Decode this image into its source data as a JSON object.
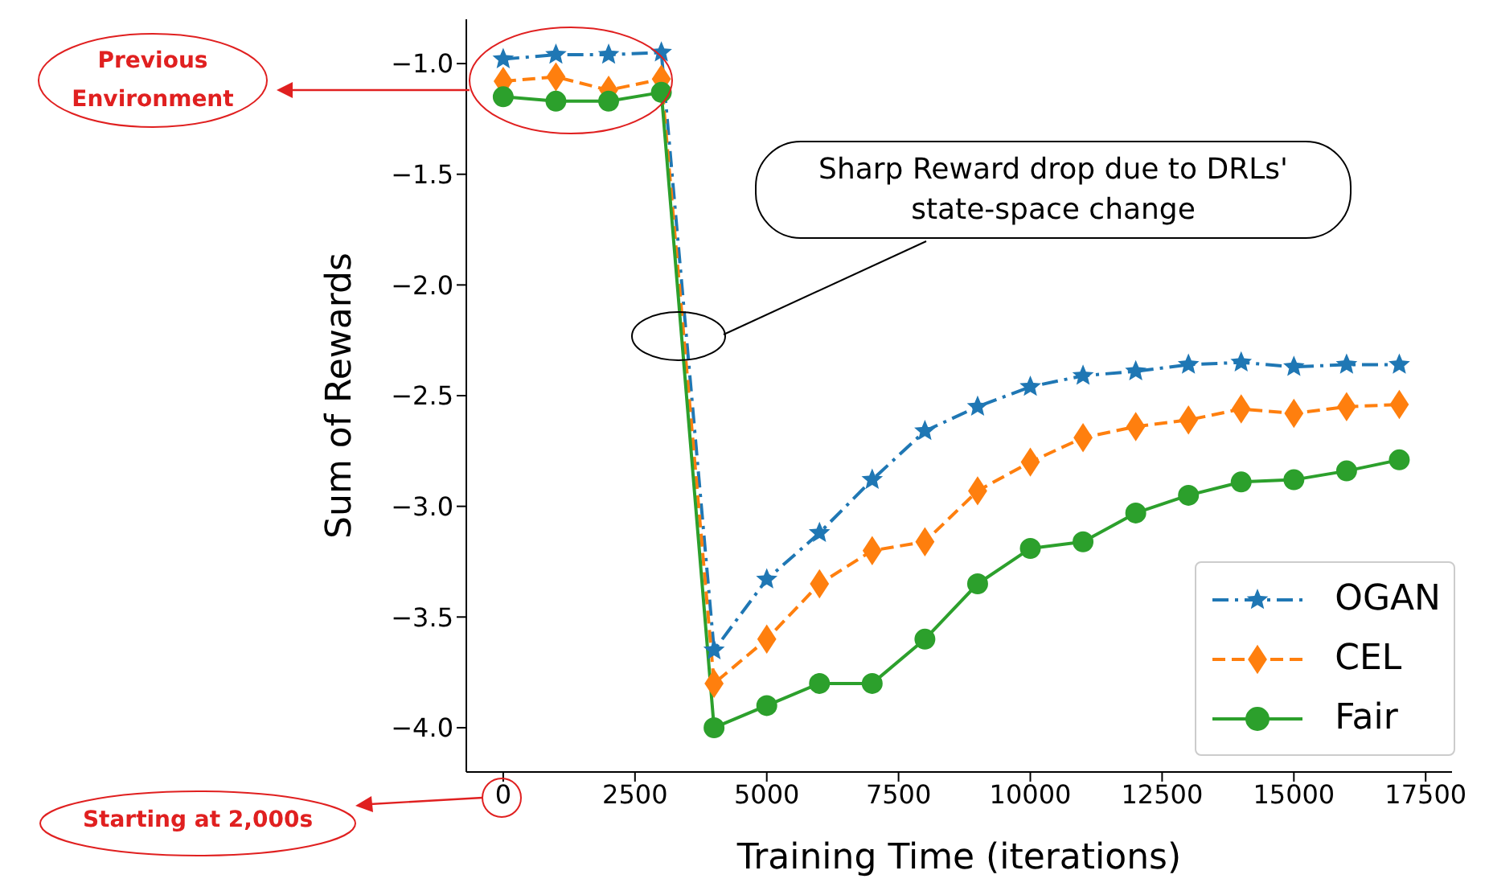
{
  "chart_data": {
    "type": "line",
    "xlabel": "Training Time (iterations)",
    "ylabel": "Sum of Rewards",
    "x": [
      0,
      1000,
      2000,
      3000,
      4000,
      5000,
      6000,
      7000,
      8000,
      9000,
      10000,
      11000,
      12000,
      13000,
      14000,
      15000,
      16000,
      17000
    ],
    "series": [
      {
        "name": "OGAN",
        "color": "#1f77b4",
        "marker": "star",
        "line_style": "dashdot",
        "values": [
          -0.98,
          -0.96,
          -0.96,
          -0.95,
          -3.65,
          -3.33,
          -3.12,
          -2.88,
          -2.66,
          -2.55,
          -2.46,
          -2.41,
          -2.39,
          -2.36,
          -2.35,
          -2.37,
          -2.36,
          -2.36
        ]
      },
      {
        "name": "CEL",
        "color": "#ff7f0e",
        "marker": "diamond",
        "line_style": "dashed",
        "values": [
          -1.08,
          -1.06,
          -1.12,
          -1.07,
          -3.8,
          -3.6,
          -3.35,
          -3.2,
          -3.16,
          -2.93,
          -2.8,
          -2.69,
          -2.64,
          -2.61,
          -2.56,
          -2.58,
          -2.55,
          -2.54
        ]
      },
      {
        "name": "Fair",
        "color": "#2ca02c",
        "marker": "circle",
        "line_style": "solid",
        "values": [
          -1.15,
          -1.17,
          -1.17,
          -1.13,
          -4.0,
          -3.9,
          -3.8,
          -3.8,
          -3.6,
          -3.35,
          -3.19,
          -3.16,
          -3.03,
          -2.95,
          -2.89,
          -2.88,
          -2.84,
          -2.79
        ]
      }
    ],
    "xlim": [
      -700,
      18000
    ],
    "xticks": [
      0,
      2500,
      5000,
      7500,
      10000,
      12500,
      15000,
      17500
    ],
    "ylim": [
      -4.2,
      -0.8
    ],
    "yticks": [
      {
        "value": -4,
        "label": "−4.0"
      },
      {
        "value": -3.5,
        "label": "−3.5"
      },
      {
        "value": -3,
        "label": "−3.0"
      },
      {
        "value": -2.5,
        "label": "−2.5"
      },
      {
        "value": -2,
        "label": "−2.0"
      },
      {
        "value": -1.5,
        "label": "−1.5"
      },
      {
        "value": -1,
        "label": "−1.0"
      }
    ],
    "grid": false,
    "legend": "bottom right",
    "annotations": [
      "Previous Environment",
      "Starting at 2,000s",
      "Sharp Reward drop due to DRLs' state-space change"
    ]
  }
}
